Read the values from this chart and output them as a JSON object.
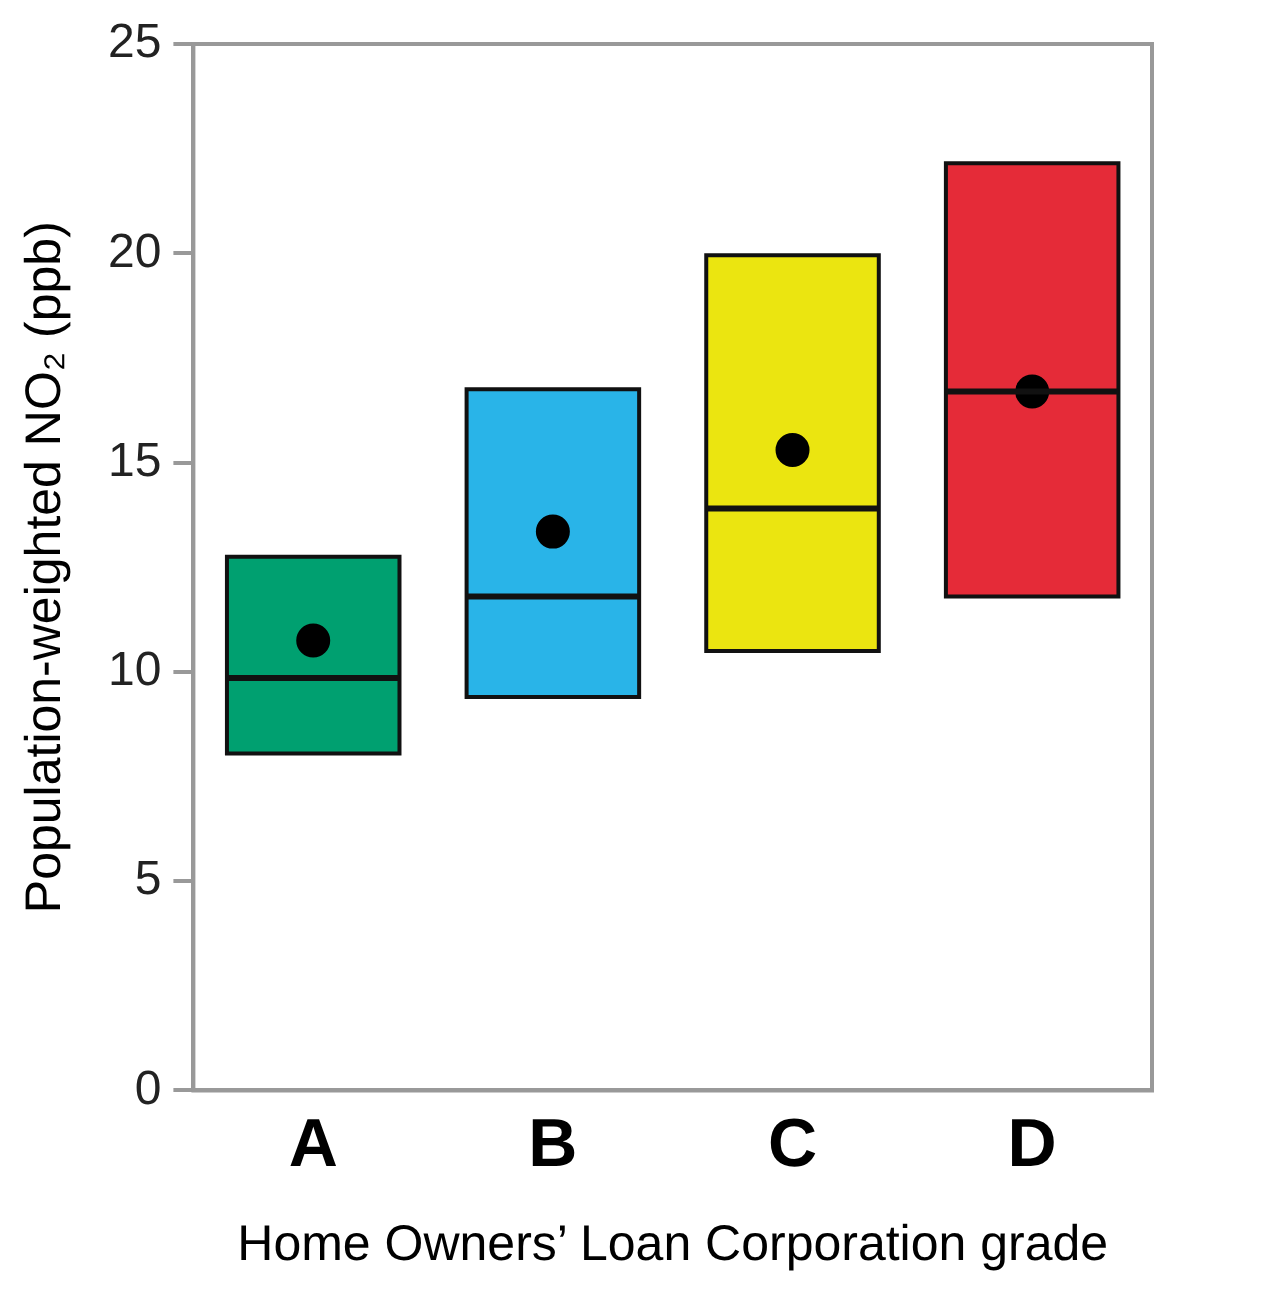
{
  "chart_data": {
    "type": "box",
    "categories": [
      "A",
      "B",
      "C",
      "D"
    ],
    "boxes": [
      {
        "low": 8.05,
        "q1": 8.05,
        "median": 9.85,
        "q3": 12.75,
        "high": 12.75,
        "mean": 10.75
      },
      {
        "low": 9.4,
        "q1": 9.4,
        "median": 11.8,
        "q3": 16.75,
        "high": 16.75,
        "mean": 13.35
      },
      {
        "low": 10.5,
        "q1": 10.5,
        "median": 13.9,
        "q3": 19.95,
        "high": 19.95,
        "mean": 15.3
      },
      {
        "low": 11.8,
        "q1": 11.8,
        "median": 16.7,
        "q3": 22.15,
        "high": 22.15,
        "mean": 16.7
      }
    ],
    "colors": [
      "#00a070",
      "#29b4e8",
      "#ebe510",
      "#e52b38"
    ],
    "xlabel": "Home Owners’ Loan Corporation grade",
    "ylabel": "Population-weighted NO₂ (ppb)",
    "ylim": [
      0,
      25
    ],
    "yticks": [
      0,
      5,
      10,
      15,
      20,
      25
    ],
    "grid": false,
    "legend": false,
    "marker": "circle"
  }
}
